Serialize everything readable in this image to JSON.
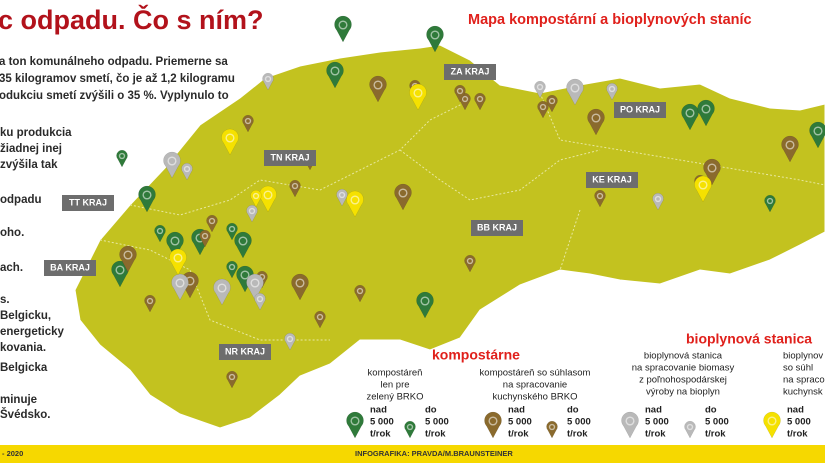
{
  "headline": "c odpadu. Čo s ním?",
  "map_title": "Mapa kompostární a bioplynových staníc",
  "article": [
    "a ton komunálneho odpadu. Priemerne sa",
    "35 kilogramov smetí, čo je až 1,2 kilogramu",
    "odukciu smetí zvýšili o 35 %. Vyplynulo to"
  ],
  "article_side": [
    "ku produkcia",
    "žiadnej inej",
    "zvýšila tak",
    "odpadu",
    "oho.",
    "ach.",
    "s.",
    "Belgicku,",
    "energeticky",
    "kovania.",
    "Belgicka",
    "minuje",
    "Švédsko."
  ],
  "regions": [
    "ZA KRAJ",
    "TN KRAJ",
    "TT KRAJ",
    "BA KRAJ",
    "NR KRAJ",
    "BB KRAJ",
    "PO KRAJ",
    "KE KRAJ"
  ],
  "legend": {
    "group_titles": [
      "kompostárne",
      "bioplynová stanica"
    ],
    "items": [
      [
        "kompostáreň",
        "len pre",
        "zelený BRKO"
      ],
      [
        "kompostáreň so súhlasom",
        "na spracovanie",
        "kuchynského BRKO"
      ],
      [
        "bioplynová stanica",
        "na spracovanie biomasy",
        "z poľnohospodárskej",
        "výroby na bioplyn"
      ],
      [
        "bioplynov",
        "so súhl",
        "na spraco",
        "kuchynsk"
      ]
    ],
    "size_big": [
      "nad",
      "5 000",
      "t/rok"
    ],
    "size_small": [
      "do",
      "5 000",
      "t/rok"
    ]
  },
  "footer": {
    "left": "- 2020",
    "credit": "INFOGRAFIKA: PRAVDA/M.BRAUNSTEINER"
  }
}
